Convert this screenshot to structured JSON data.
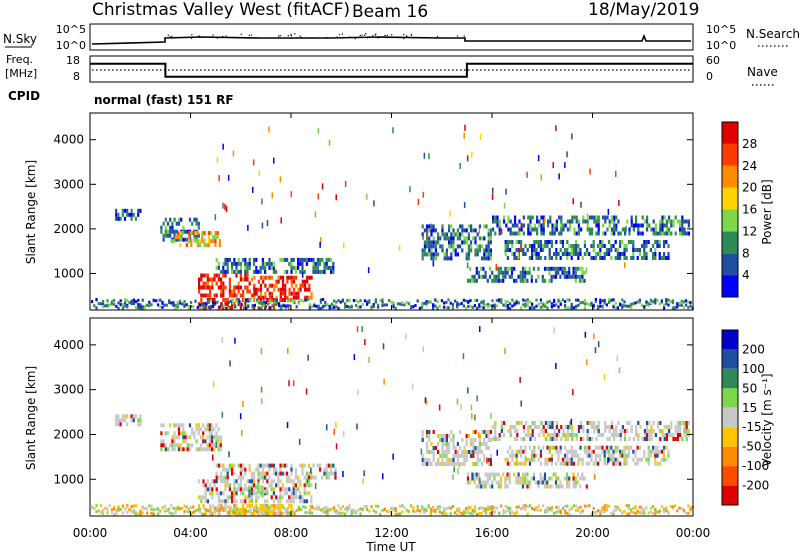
{
  "header": {
    "station": "Christmas Valley West (fitACF)",
    "beam": "Beam 16",
    "date": "18/May/2019"
  },
  "top_panels": {
    "nsky_label": "N.Sky",
    "nsky_ticks": [
      "10^5",
      "10^0"
    ],
    "nsearch_label": "N.Search",
    "nsearch_ticks": [
      "10^5",
      "10^0"
    ],
    "freq_label_1": "Freq.",
    "freq_label_2": "[MHz]",
    "freq_ticks": [
      "18",
      "8"
    ],
    "nave_label": "Nave",
    "nave_ticks": [
      "60",
      "0"
    ],
    "cpid_label": "CPID",
    "cpid_value": "normal (fast) 151 RF"
  },
  "colorbars": {
    "power": {
      "title": "Power [dB]",
      "ticks": [
        "28",
        "24",
        "20",
        "16",
        "12",
        "8",
        "4"
      ],
      "colors": [
        "#0000ff",
        "#1f4fa0",
        "#2e8b57",
        "#7cd84a",
        "#ffd400",
        "#ff8c00",
        "#ff3c00",
        "#e00000"
      ]
    },
    "velocity": {
      "title": "Velocity [m s⁻¹]",
      "ticks": [
        "200",
        "100",
        "50",
        "15",
        "-15",
        "-50",
        "-100",
        "-200"
      ],
      "colors": [
        "#e00000",
        "#ff4b00",
        "#ff8c00",
        "#ffc400",
        "#c8c8c8",
        "#7cd84a",
        "#2e8b57",
        "#1f4fa0",
        "#0000c8"
      ]
    }
  },
  "chart_data": [
    {
      "type": "heatmap",
      "panel": "power",
      "ylabel": "Slant Range [km]",
      "yticks": [
        1000,
        2000,
        3000,
        4000
      ],
      "ylim": [
        180,
        4600
      ],
      "xlim": [
        0,
        24
      ],
      "regions": [
        {
          "t0": 2.8,
          "t1": 4.3,
          "r0": 1750,
          "r1": 2250,
          "level": "mid"
        },
        {
          "t0": 3.2,
          "t1": 5.2,
          "r0": 1650,
          "r1": 1950,
          "level": "high"
        },
        {
          "t0": 5.0,
          "t1": 9.8,
          "r0": 1050,
          "r1": 1350,
          "level": "mid"
        },
        {
          "t0": 4.3,
          "t1": 6.5,
          "r0": 550,
          "r1": 1000,
          "level": "max"
        },
        {
          "t0": 6.5,
          "t1": 8.8,
          "r0": 500,
          "r1": 950,
          "level": "max"
        },
        {
          "t0": 4.3,
          "t1": 8.0,
          "r0": 250,
          "r1": 450,
          "level": "max"
        },
        {
          "t0": 13.2,
          "t1": 16.0,
          "r0": 1300,
          "r1": 2100,
          "level": "mid"
        },
        {
          "t0": 15.0,
          "t1": 19.8,
          "r0": 800,
          "r1": 1150,
          "level": "mid"
        },
        {
          "t0": 16.0,
          "t1": 23.8,
          "r0": 1900,
          "r1": 2300,
          "level": "mid"
        },
        {
          "t0": 16.5,
          "t1": 23.0,
          "r0": 1350,
          "r1": 1750,
          "level": "mid"
        },
        {
          "t0": 1.0,
          "t1": 2.0,
          "r0": 2250,
          "r1": 2450,
          "level": "low"
        }
      ]
    },
    {
      "type": "heatmap",
      "panel": "velocity",
      "ylabel": "Slant Range [km]",
      "yticks": [
        1000,
        2000,
        3000,
        4000
      ],
      "ylim": [
        180,
        4600
      ],
      "xlim": [
        0,
        24
      ],
      "regions": [
        {
          "t0": 2.8,
          "t1": 5.2,
          "r0": 1650,
          "r1": 2250,
          "level": "zero"
        },
        {
          "t0": 5.0,
          "t1": 9.8,
          "r0": 1050,
          "r1": 1350,
          "level": "zero"
        },
        {
          "t0": 4.3,
          "t1": 8.8,
          "r0": 500,
          "r1": 1000,
          "level": "zero"
        },
        {
          "t0": 6.3,
          "t1": 7.0,
          "r0": 650,
          "r1": 950,
          "level": "posgreen"
        },
        {
          "t0": 4.3,
          "t1": 8.0,
          "r0": 250,
          "r1": 450,
          "level": "negorange"
        },
        {
          "t0": 13.2,
          "t1": 16.0,
          "r0": 1300,
          "r1": 2100,
          "level": "zero"
        },
        {
          "t0": 15.0,
          "t1": 19.8,
          "r0": 800,
          "r1": 1150,
          "level": "zero"
        },
        {
          "t0": 16.0,
          "t1": 23.8,
          "r0": 1900,
          "r1": 2300,
          "level": "zero"
        },
        {
          "t0": 16.5,
          "t1": 23.0,
          "r0": 1350,
          "r1": 1750,
          "level": "zero"
        },
        {
          "t0": 1.0,
          "t1": 2.0,
          "r0": 2250,
          "r1": 2450,
          "level": "zero"
        }
      ]
    }
  ],
  "time_axis": {
    "ticks": [
      "00:00",
      "04:00",
      "08:00",
      "12:00",
      "16:00",
      "20:00",
      "00:00"
    ],
    "label": "Time UT"
  },
  "freq_series": {
    "t": [
      0,
      3,
      3,
      15,
      15,
      24
    ],
    "f_mhz": [
      15,
      15,
      10,
      10,
      15,
      15
    ]
  }
}
